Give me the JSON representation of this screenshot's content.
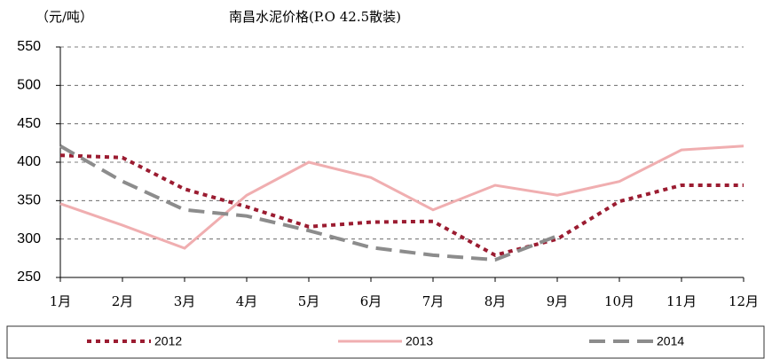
{
  "chart_data": {
    "type": "line",
    "title": "南昌水泥价格(P.O 42.5散装)",
    "y_label": "（元/吨）",
    "categories": [
      "1月",
      "2月",
      "3月",
      "4月",
      "5月",
      "6月",
      "7月",
      "8月",
      "9月",
      "10月",
      "11月",
      "12月"
    ],
    "series": [
      {
        "name": "2012",
        "color": "#9b1c31",
        "style": "dotted",
        "values": [
          409,
          406,
          365,
          342,
          316,
          322,
          323,
          279,
          300,
          349,
          370,
          370
        ]
      },
      {
        "name": "2013",
        "color": "#f0aeb0",
        "style": "solid",
        "values": [
          346,
          318,
          288,
          357,
          400,
          380,
          338,
          370,
          357,
          375,
          416,
          421
        ]
      },
      {
        "name": "2014",
        "color": "#8c8c8c",
        "style": "dashed",
        "values": [
          421,
          375,
          338,
          330,
          311,
          289,
          279,
          273,
          304,
          null,
          null,
          null
        ]
      }
    ],
    "ylim": [
      250,
      550
    ],
    "yticks": [
      250,
      300,
      350,
      400,
      450,
      500,
      550
    ],
    "grid": true
  }
}
